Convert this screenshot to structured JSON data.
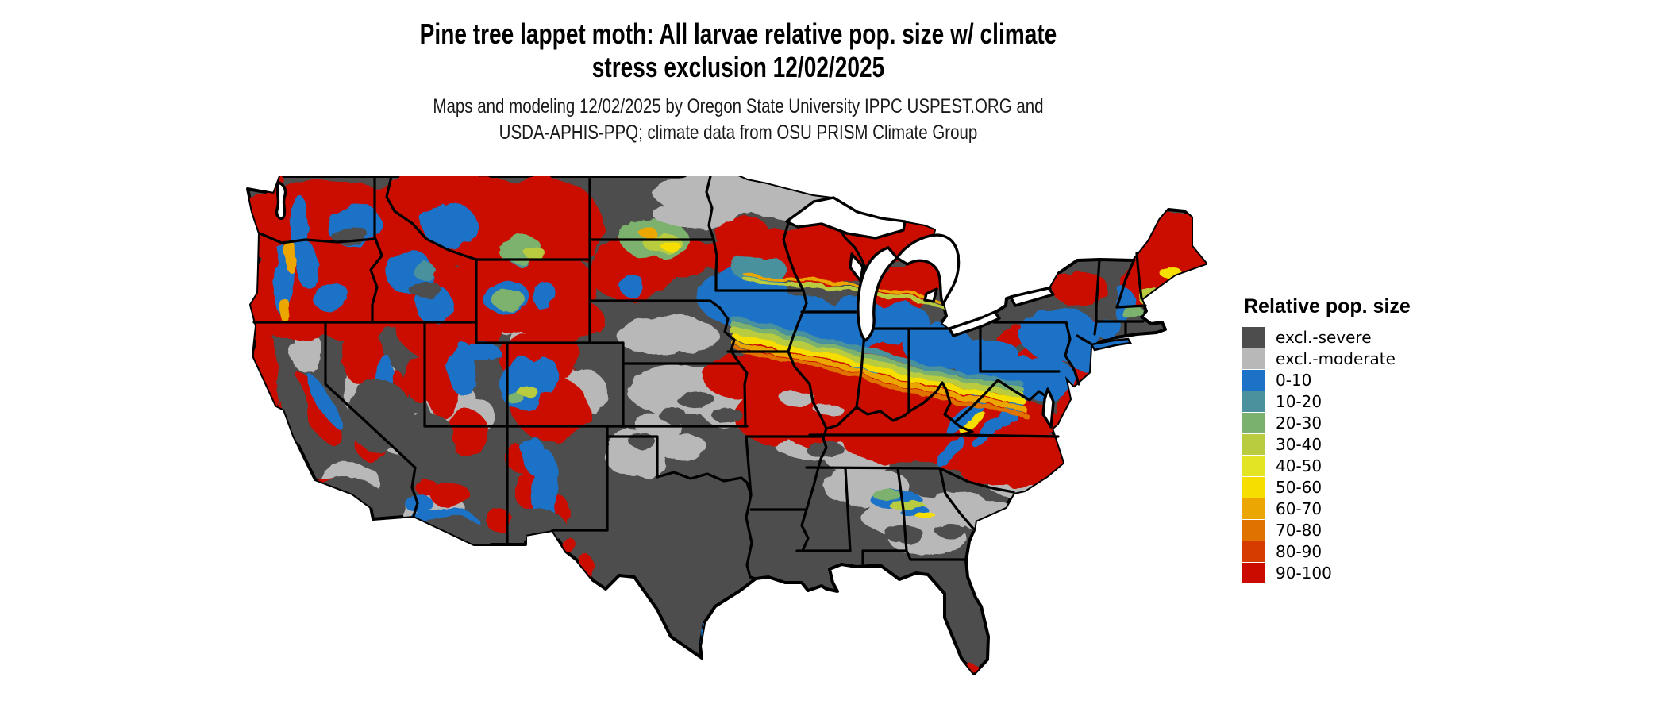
{
  "title": {
    "line1": "Pine tree lappet moth: All larvae relative pop. size w/ climate",
    "line2": "stress exclusion 12/02/2025"
  },
  "subtitle": {
    "line1": "Maps and modeling 12/02/2025 by Oregon State University IPPC USPEST.ORG and",
    "line2": "USDA-APHIS-PPQ; climate data from OSU PRISM Climate Group"
  },
  "legend": {
    "title": "Relative pop. size",
    "items": [
      {
        "label": "excl.-severe",
        "color": "#4d4d4d"
      },
      {
        "label": "excl.-moderate",
        "color": "#b8b8b8"
      },
      {
        "label": "0-10",
        "color": "#1b72c6"
      },
      {
        "label": "10-20",
        "color": "#4a919d"
      },
      {
        "label": "20-30",
        "color": "#7bb16e"
      },
      {
        "label": "30-40",
        "color": "#b9cc3f"
      },
      {
        "label": "40-50",
        "color": "#e3e524"
      },
      {
        "label": "50-60",
        "color": "#f5de00"
      },
      {
        "label": "60-70",
        "color": "#eca603"
      },
      {
        "label": "70-80",
        "color": "#e07200"
      },
      {
        "label": "80-90",
        "color": "#d63c00"
      },
      {
        "label": "90-100",
        "color": "#cb0a00"
      }
    ]
  },
  "map": {
    "region": "Contiguous United States",
    "kind": "raster relative population size map with state boundaries"
  }
}
